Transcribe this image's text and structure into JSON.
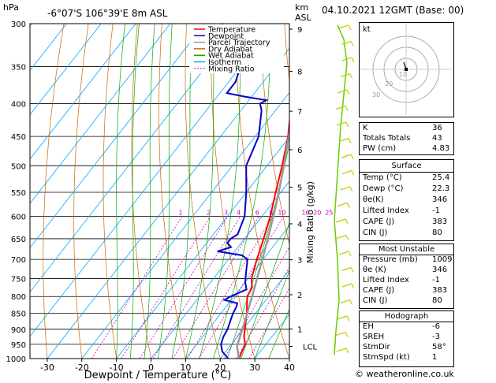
{
  "header": {
    "location": "-6°07'S  106°39'E  8m  ASL",
    "hpa_label": "hPa",
    "km_label": "km",
    "asl_label": "ASL",
    "time_label": "04.10.2021  12GMT  (Base: 00)"
  },
  "chart_data": {
    "type": "line",
    "xlabel": "Dewpoint / Temperature (°C)",
    "ylabel": "",
    "right_label": "Mixing Ratio (g/kg)",
    "xlim": [
      -35,
      40
    ],
    "ylim": [
      1000,
      300
    ],
    "pressure_ticks": [
      300,
      350,
      400,
      450,
      500,
      550,
      600,
      650,
      700,
      750,
      800,
      850,
      900,
      950,
      1000
    ],
    "temp_ticks": [
      -30,
      -20,
      -10,
      0,
      10,
      20,
      30,
      40
    ],
    "km_ticks": [
      {
        "label": "9",
        "p": 306
      },
      {
        "label": "8",
        "p": 356
      },
      {
        "label": "7",
        "p": 411
      },
      {
        "label": "6",
        "p": 472
      },
      {
        "label": "5",
        "p": 540
      },
      {
        "label": "4",
        "p": 616
      },
      {
        "label": "3",
        "p": 701
      },
      {
        "label": "2",
        "p": 795
      },
      {
        "label": "1",
        "p": 899
      },
      {
        "label": "LCL",
        "p": 957
      }
    ],
    "mixing_ratio_labels": [
      "1",
      "2",
      "3",
      "4",
      "6",
      "8",
      "10",
      "16",
      "20",
      "25"
    ],
    "legend": [
      {
        "name": "Temperature",
        "color": "#ff0000"
      },
      {
        "name": "Dewpoint",
        "color": "#0000cc"
      },
      {
        "name": "Parcel Trajectory",
        "color": "#999999"
      },
      {
        "name": "Dry Adiabat",
        "color": "#cc6600"
      },
      {
        "name": "Wet Adiabat",
        "color": "#00aa00"
      },
      {
        "name": "Isotherm",
        "color": "#00aaff"
      },
      {
        "name": "Mixing Ratio",
        "color": "#cc00cc"
      }
    ],
    "series": [
      {
        "name": "Temperature",
        "color": "#ff0000",
        "points": [
          [
            1000,
            25.4
          ],
          [
            950,
            24
          ],
          [
            925,
            22
          ],
          [
            900,
            20.5
          ],
          [
            850,
            17.5
          ],
          [
            800,
            13.8
          ],
          [
            775,
            13.2
          ],
          [
            750,
            11
          ],
          [
            700,
            8.2
          ],
          [
            650,
            5.5
          ],
          [
            600,
            2.4
          ],
          [
            550,
            -1.5
          ],
          [
            500,
            -5.6
          ],
          [
            450,
            -10.5
          ],
          [
            400,
            -17
          ],
          [
            375,
            -20.6
          ],
          [
            350,
            -24.8
          ],
          [
            300,
            -33
          ]
        ]
      },
      {
        "name": "Dewpoint",
        "color": "#0000cc",
        "points": [
          [
            1000,
            22.3
          ],
          [
            975,
            19
          ],
          [
            950,
            17
          ],
          [
            925,
            16
          ],
          [
            900,
            15.5
          ],
          [
            850,
            13.5
          ],
          [
            830,
            13
          ],
          [
            820,
            12.5
          ],
          [
            810,
            8
          ],
          [
            800,
            9
          ],
          [
            780,
            12
          ],
          [
            760,
            10
          ],
          [
            740,
            8.5
          ],
          [
            700,
            5.5
          ],
          [
            690,
            3
          ],
          [
            680,
            -5
          ],
          [
            670,
            -2
          ],
          [
            660,
            -4
          ],
          [
            650,
            -4
          ],
          [
            640,
            -3
          ],
          [
            600,
            -5
          ],
          [
            550,
            -10
          ],
          [
            500,
            -16
          ],
          [
            450,
            -19
          ],
          [
            410,
            -24
          ],
          [
            400,
            -26
          ],
          [
            395,
            -25
          ],
          [
            390,
            -32
          ],
          [
            385,
            -38
          ],
          [
            370,
            -38
          ],
          [
            350,
            -40
          ],
          [
            330,
            -46
          ],
          [
            300,
            -55
          ]
        ]
      },
      {
        "name": "Parcel Trajectory",
        "color": "#999999",
        "points": [
          [
            1000,
            25.4
          ],
          [
            957,
            22.1
          ],
          [
            950,
            21.8
          ],
          [
            900,
            19.8
          ],
          [
            850,
            17.6
          ],
          [
            800,
            15.2
          ],
          [
            750,
            12.6
          ],
          [
            700,
            9.8
          ],
          [
            650,
            6.7
          ],
          [
            600,
            3.3
          ],
          [
            550,
            -0.6
          ],
          [
            500,
            -5.1
          ],
          [
            450,
            -10.3
          ],
          [
            400,
            -16.5
          ],
          [
            350,
            -24
          ],
          [
            300,
            -33
          ]
        ]
      }
    ],
    "wind_barbs": [
      "≥",
      "≥",
      "≥",
      "≥",
      "≥",
      "≥",
      "≥",
      "≥",
      "≥",
      "≥",
      "≥",
      "≥",
      "≥",
      "≥",
      "≥",
      "≥",
      "≥",
      "≥",
      "≥",
      "≥",
      "≥"
    ]
  },
  "hodograph": {
    "unit_label": "kt",
    "ring_labels": [
      "10",
      "20",
      "30"
    ]
  },
  "indices": [
    {
      "key": "K",
      "value": "36"
    },
    {
      "key": "Totals Totals",
      "value": "43"
    },
    {
      "key": "PW (cm)",
      "value": "4.83"
    }
  ],
  "surface": {
    "title": "Surface",
    "rows": [
      {
        "key": "Temp (°C)",
        "value": "25.4"
      },
      {
        "key": "Dewp (°C)",
        "value": "22.3"
      },
      {
        "key": "θe(K)",
        "value": "346"
      },
      {
        "key": "Lifted Index",
        "value": "-1"
      },
      {
        "key": "CAPE (J)",
        "value": "383"
      },
      {
        "key": "CIN (J)",
        "value": "80"
      }
    ]
  },
  "most_unstable": {
    "title": "Most Unstable",
    "rows": [
      {
        "key": "Pressure (mb)",
        "value": "1009"
      },
      {
        "key": "θe (K)",
        "value": "346"
      },
      {
        "key": "Lifted Index",
        "value": "-1"
      },
      {
        "key": "CAPE (J)",
        "value": "383"
      },
      {
        "key": "CIN (J)",
        "value": "80"
      }
    ]
  },
  "hodograph_stats": {
    "title": "Hodograph",
    "rows": [
      {
        "key": "EH",
        "value": "-6"
      },
      {
        "key": "SREH",
        "value": "-3"
      },
      {
        "key": "StmDir",
        "value": "58°"
      },
      {
        "key": "StmSpd (kt)",
        "value": "1"
      }
    ]
  },
  "footer": {
    "copyright": "© weatheronline.co.uk"
  }
}
